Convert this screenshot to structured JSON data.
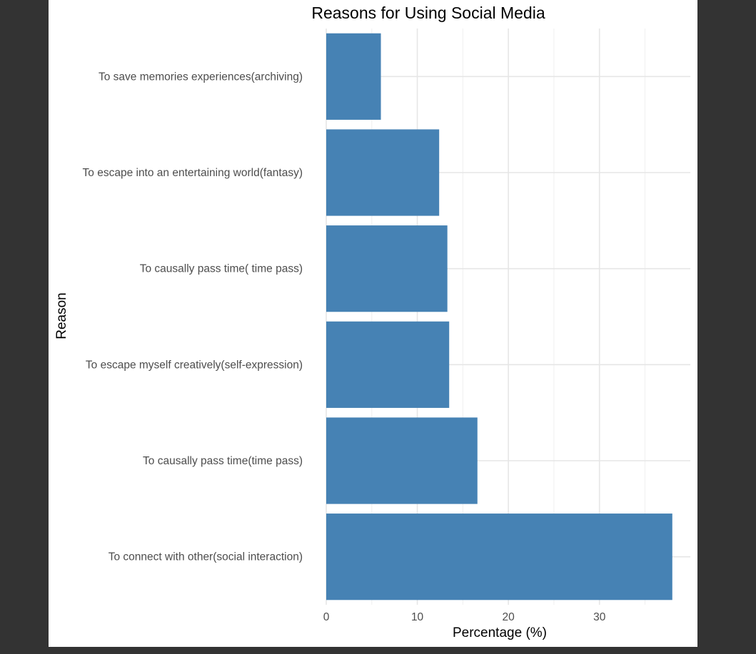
{
  "window": {
    "background": "#333333",
    "panel_background": "#ffffff"
  },
  "chart_data": {
    "type": "bar",
    "orientation": "horizontal",
    "title": "Reasons for Using Social Media",
    "xlabel": "Percentage (%)",
    "ylabel": "Reason",
    "categories": [
      "To save memories experiences(archiving)",
      "To escape into an entertaining world(fantasy)",
      "To causally pass time( time pass)",
      "To escape myself creatively(self-expression)",
      "To causally pass time(time pass)",
      "To connect with other(social interaction)"
    ],
    "values": [
      6.0,
      12.4,
      13.3,
      13.5,
      16.6,
      38.0
    ],
    "xlim": [
      0,
      40
    ],
    "x_ticks": [
      0,
      10,
      20,
      30
    ],
    "bar_color": "#4682B4",
    "grid": true,
    "legend": "none"
  }
}
